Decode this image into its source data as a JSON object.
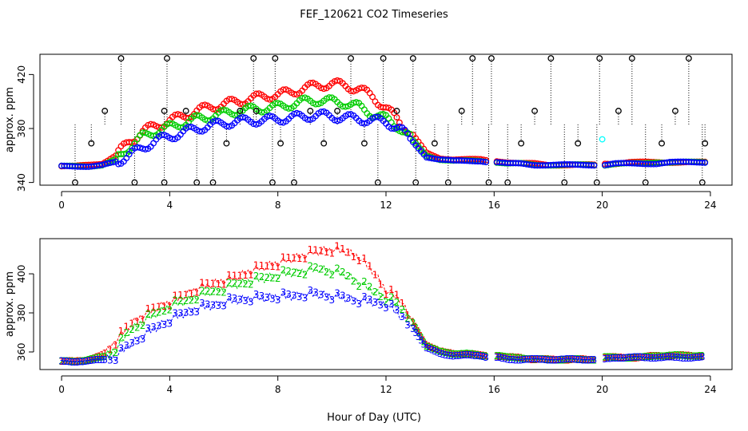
{
  "figure": {
    "title": "FEF_120621  CO2 Timeseries",
    "xlabel": "Hour of Day (UTC)"
  },
  "colors": {
    "series1": "#ff0000",
    "series2": "#00cd00",
    "series3": "#0000ff",
    "outlier": "#000000",
    "highlight": "#00ffff",
    "axis": "#000000"
  },
  "chart_data": [
    {
      "type": "scatter",
      "ylabel": "approx. ppm",
      "xlim": [
        -0.8,
        24.8
      ],
      "ylim": [
        338,
        435
      ],
      "xticks": [
        0,
        4,
        8,
        12,
        16,
        20,
        24
      ],
      "yticks": [
        340,
        380,
        420
      ],
      "grid": false,
      "marker": "open-circle",
      "spike_baseline": 383,
      "spike_x": [
        0.5,
        1.1,
        1.6,
        2.2,
        2.7,
        3.8,
        3.8,
        3.9,
        4.6,
        5.0,
        5.6,
        6.1,
        6.6,
        7.1,
        7.2,
        7.8,
        7.9,
        8.1,
        8.6,
        9.2,
        9.7,
        10.2,
        10.7,
        11.2,
        11.7,
        11.9,
        12.4,
        13.0,
        13.1,
        13.8,
        14.3,
        14.8,
        15.2,
        15.8,
        15.9,
        16.5,
        17.0,
        17.5,
        18.1,
        18.6,
        19.1,
        19.8,
        19.9,
        20.6,
        21.1,
        21.6,
        22.2,
        22.7,
        23.2,
        23.7,
        23.8
      ],
      "spike_y": [
        340,
        369,
        393,
        432,
        340,
        340,
        393,
        432,
        393,
        340,
        340,
        369,
        393,
        432,
        393,
        340,
        432,
        369,
        340,
        393,
        369,
        393,
        432,
        369,
        340,
        432,
        393,
        432,
        340,
        369,
        340,
        393,
        432,
        340,
        432,
        340,
        369,
        393,
        432,
        340,
        369,
        340,
        432,
        393,
        432,
        340,
        369,
        393,
        432,
        340,
        369
      ],
      "highlight_points": [
        {
          "x": 20.0,
          "y": 372
        }
      ],
      "series": [
        {
          "name": "1",
          "times": [
            0,
            0.5,
            1,
            1.5,
            2,
            2.5,
            3,
            3.5,
            4,
            4.5,
            5,
            5.5,
            6,
            6.5,
            7,
            7.5,
            8,
            8.5,
            9,
            9.5,
            10,
            10.5,
            11,
            11.5,
            12,
            12.5,
            13,
            13.5,
            14,
            14.5,
            15,
            15.5,
            15.9,
            16.1,
            16.5,
            17,
            17.5,
            18,
            18.5,
            19,
            19.5,
            19.9,
            20.1,
            20.5,
            21,
            21.5,
            22,
            22.5,
            23,
            23.5,
            23.8
          ],
          "values": [
            352,
            352,
            353,
            354,
            360,
            370,
            378,
            382,
            386,
            389,
            393,
            396,
            398,
            400,
            402,
            404,
            405,
            407,
            410,
            412,
            413,
            412,
            409,
            404,
            395,
            385,
            375,
            362,
            358,
            357,
            357,
            357,
            356,
            356,
            355,
            354,
            354,
            353,
            353,
            353,
            353,
            353,
            354,
            354,
            355,
            355,
            355,
            355,
            355,
            355,
            355
          ]
        },
        {
          "name": "2",
          "times": [
            0,
            0.5,
            1,
            1.5,
            2,
            2.5,
            3,
            3.5,
            4,
            4.5,
            5,
            5.5,
            6,
            6.5,
            7,
            7.5,
            8,
            8.5,
            9,
            9.5,
            10,
            10.5,
            11,
            11.5,
            12,
            12.5,
            13,
            13.5,
            14,
            14.5,
            15,
            15.5,
            15.9,
            16.1,
            16.5,
            17,
            17.5,
            18,
            18.5,
            19,
            19.5,
            19.9,
            20.1,
            20.5,
            21,
            21.5,
            22,
            22.5,
            23,
            23.5,
            23.8
          ],
          "values": [
            352,
            352,
            352,
            353,
            357,
            366,
            374,
            378,
            381,
            384,
            387,
            389,
            391,
            393,
            394,
            395,
            396,
            398,
            400,
            401,
            400,
            399,
            396,
            391,
            387,
            381,
            371,
            360,
            357,
            356,
            356,
            356,
            355,
            355,
            354,
            354,
            353,
            353,
            353,
            353,
            353,
            353,
            353,
            354,
            354,
            354,
            355,
            355,
            355,
            355,
            355
          ]
        },
        {
          "name": "3",
          "times": [
            0,
            0.5,
            1,
            1.5,
            2,
            2.5,
            3,
            3.5,
            4,
            4.5,
            5,
            5.5,
            6,
            6.5,
            7,
            7.5,
            8,
            8.5,
            9,
            9.5,
            10,
            10.5,
            11,
            11.5,
            12,
            12.5,
            13,
            13.5,
            14,
            14.5,
            15,
            15.5,
            15.9,
            16.1,
            16.5,
            17,
            17.5,
            18,
            18.5,
            19,
            19.5,
            19.9,
            20.1,
            20.5,
            21,
            21.5,
            22,
            22.5,
            23,
            23.5,
            23.8
          ],
          "values": [
            352,
            352,
            352,
            353,
            355,
            360,
            366,
            371,
            374,
            377,
            380,
            382,
            384,
            385,
            386,
            386,
            387,
            388,
            389,
            390,
            389,
            388,
            387,
            386,
            385,
            380,
            370,
            359,
            357,
            356,
            356,
            356,
            355,
            355,
            354,
            354,
            353,
            353,
            353,
            353,
            353,
            353,
            353,
            354,
            354,
            354,
            354,
            355,
            355,
            355,
            355
          ]
        }
      ]
    },
    {
      "type": "line",
      "ylabel": "approx. ppm",
      "xlim": [
        -0.8,
        24.8
      ],
      "ylim": [
        351,
        418
      ],
      "xticks": [
        0,
        4,
        8,
        12,
        16,
        20,
        24
      ],
      "yticks": [
        360,
        380,
        400
      ],
      "grid": false,
      "marker": "series-number",
      "series": [
        {
          "name": "1",
          "times": [
            0,
            0.5,
            1,
            1.5,
            2,
            2.5,
            3,
            3.5,
            4,
            4.5,
            5,
            5.5,
            6,
            6.5,
            7,
            7.5,
            8,
            8.5,
            9,
            9.5,
            10,
            10.5,
            11,
            11.5,
            12,
            12.5,
            13,
            13.5,
            14,
            14.5,
            15,
            15.5,
            15.9,
            16.1,
            16.5,
            17,
            17.5,
            18,
            18.5,
            19,
            19.5,
            19.9,
            20.1,
            20.5,
            21,
            21.5,
            22,
            22.5,
            23,
            23.5,
            23.8
          ],
          "values": [
            355,
            355,
            356,
            358,
            366,
            374,
            379,
            383,
            386,
            389,
            393,
            395,
            397,
            399,
            402,
            404,
            406,
            408,
            410,
            412,
            413,
            412,
            409,
            402,
            392,
            388,
            375,
            364,
            360,
            359,
            359,
            358,
            358,
            358,
            357,
            357,
            356,
            356,
            356,
            356,
            356,
            356,
            357,
            357,
            357,
            357,
            358,
            358,
            358,
            358,
            358
          ]
        },
        {
          "name": "2",
          "times": [
            0,
            0.5,
            1,
            1.5,
            2,
            2.5,
            3,
            3.5,
            4,
            4.5,
            5,
            5.5,
            6,
            6.5,
            7,
            7.5,
            8,
            8.5,
            9,
            9.5,
            10,
            10.5,
            11,
            11.5,
            12,
            12.5,
            13,
            13.5,
            14,
            14.5,
            15,
            15.5,
            15.9,
            16.1,
            16.5,
            17,
            17.5,
            18,
            18.5,
            19,
            19.5,
            19.9,
            20.1,
            20.5,
            21,
            21.5,
            22,
            22.5,
            23,
            23.5,
            23.8
          ],
          "values": [
            355,
            355,
            356,
            357,
            362,
            371,
            376,
            380,
            384,
            386,
            389,
            391,
            393,
            395,
            397,
            398,
            400,
            401,
            402,
            403,
            402,
            400,
            396,
            392,
            388,
            384,
            375,
            363,
            360,
            359,
            359,
            358,
            358,
            358,
            357,
            357,
            356,
            356,
            356,
            356,
            356,
            356,
            357,
            357,
            357,
            357,
            358,
            358,
            358,
            358,
            358
          ]
        },
        {
          "name": "3",
          "times": [
            0,
            0.5,
            1,
            1.5,
            2,
            2.5,
            3,
            3.5,
            4,
            4.5,
            5,
            5.5,
            6,
            6.5,
            7,
            7.5,
            8,
            8.5,
            9,
            9.5,
            10,
            10.5,
            11,
            11.5,
            12,
            12.5,
            13,
            13.5,
            14,
            14.5,
            15,
            15.5,
            15.9,
            16.1,
            16.5,
            17,
            17.5,
            18,
            18.5,
            19,
            19.5,
            19.9,
            20.1,
            20.5,
            21,
            21.5,
            22,
            22.5,
            23,
            23.5,
            23.8
          ],
          "values": [
            355,
            355,
            355,
            356,
            358,
            364,
            369,
            373,
            377,
            380,
            383,
            384,
            386,
            387,
            388,
            388,
            389,
            389,
            390,
            390,
            389,
            388,
            387,
            386,
            385,
            380,
            372,
            362,
            359,
            358,
            358,
            358,
            357,
            357,
            356,
            356,
            356,
            356,
            356,
            356,
            356,
            356,
            356,
            357,
            357,
            357,
            357,
            357,
            357,
            357,
            357
          ]
        }
      ]
    }
  ]
}
